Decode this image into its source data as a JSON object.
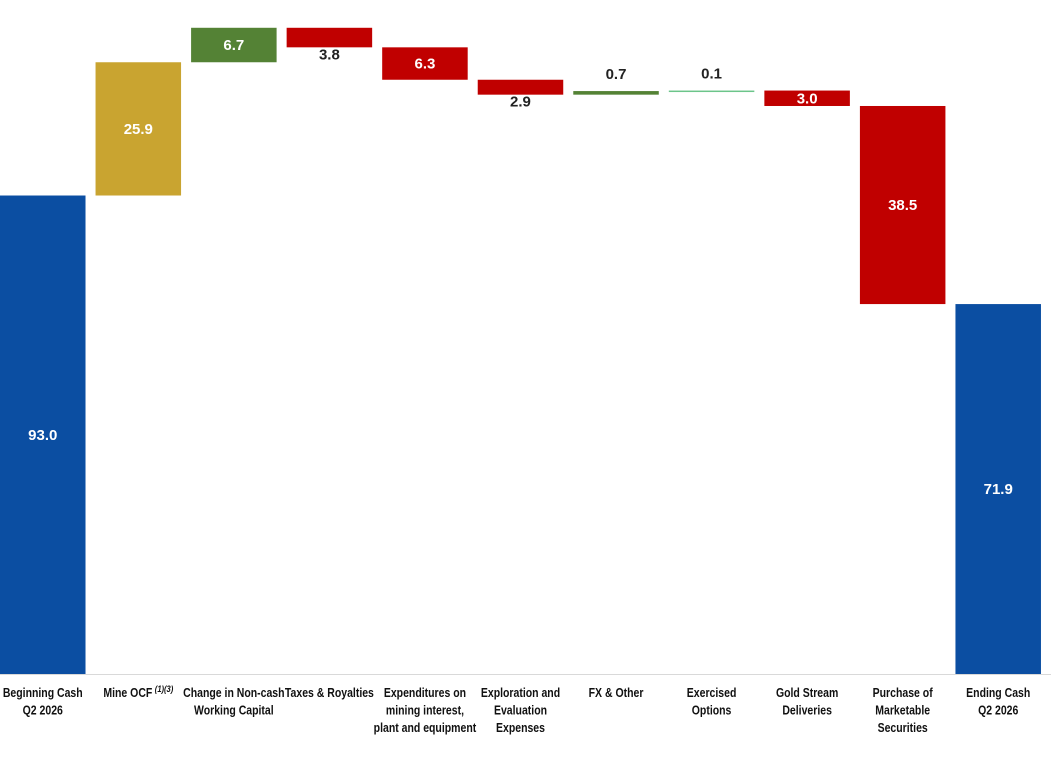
{
  "chart_data": {
    "type": "waterfall",
    "categories": [
      [
        "Beginning Cash",
        "Q2 2026"
      ],
      [
        "Mine OCF"
      ],
      [
        "Change in Non-cash",
        "Working Capital"
      ],
      [
        "Taxes & Royalties"
      ],
      [
        "Expenditures on",
        "mining interest,",
        "plant and equipment"
      ],
      [
        "Exploration and",
        "Evaluation",
        "Expenses"
      ],
      [
        "FX & Other"
      ],
      [
        "Exercised",
        "Options"
      ],
      [
        "Gold Stream",
        "Deliveries"
      ],
      [
        "Purchase of",
        "Marketable",
        "Securities"
      ],
      [
        "Ending Cash",
        "Q2 2026"
      ]
    ],
    "category_superscripts": [
      null,
      "(1)(3)",
      null,
      null,
      null,
      null,
      null,
      null,
      null,
      null,
      null
    ],
    "values": [
      93.0,
      25.9,
      6.7,
      -3.8,
      -6.3,
      -2.9,
      0.7,
      0.1,
      -3.0,
      -38.5,
      71.9
    ],
    "value_labels": [
      "93.0",
      "25.9",
      "6.7",
      "3.8",
      "6.3",
      "2.9",
      "0.7",
      "0.1",
      "3.0",
      "38.5",
      "71.9"
    ],
    "label_positions": [
      "inside",
      "inside",
      "inside",
      "below",
      "inside",
      "below",
      "above",
      "above",
      "inside",
      "inside",
      "inside"
    ],
    "colors": [
      "#0b4ea2",
      "#c9a430",
      "#548235",
      "#c00000",
      "#c00000",
      "#c00000",
      "#548235",
      "#6cc58a",
      "#c00000",
      "#c00000",
      "#0b4ea2"
    ],
    "ylim": [
      0,
      131
    ]
  }
}
